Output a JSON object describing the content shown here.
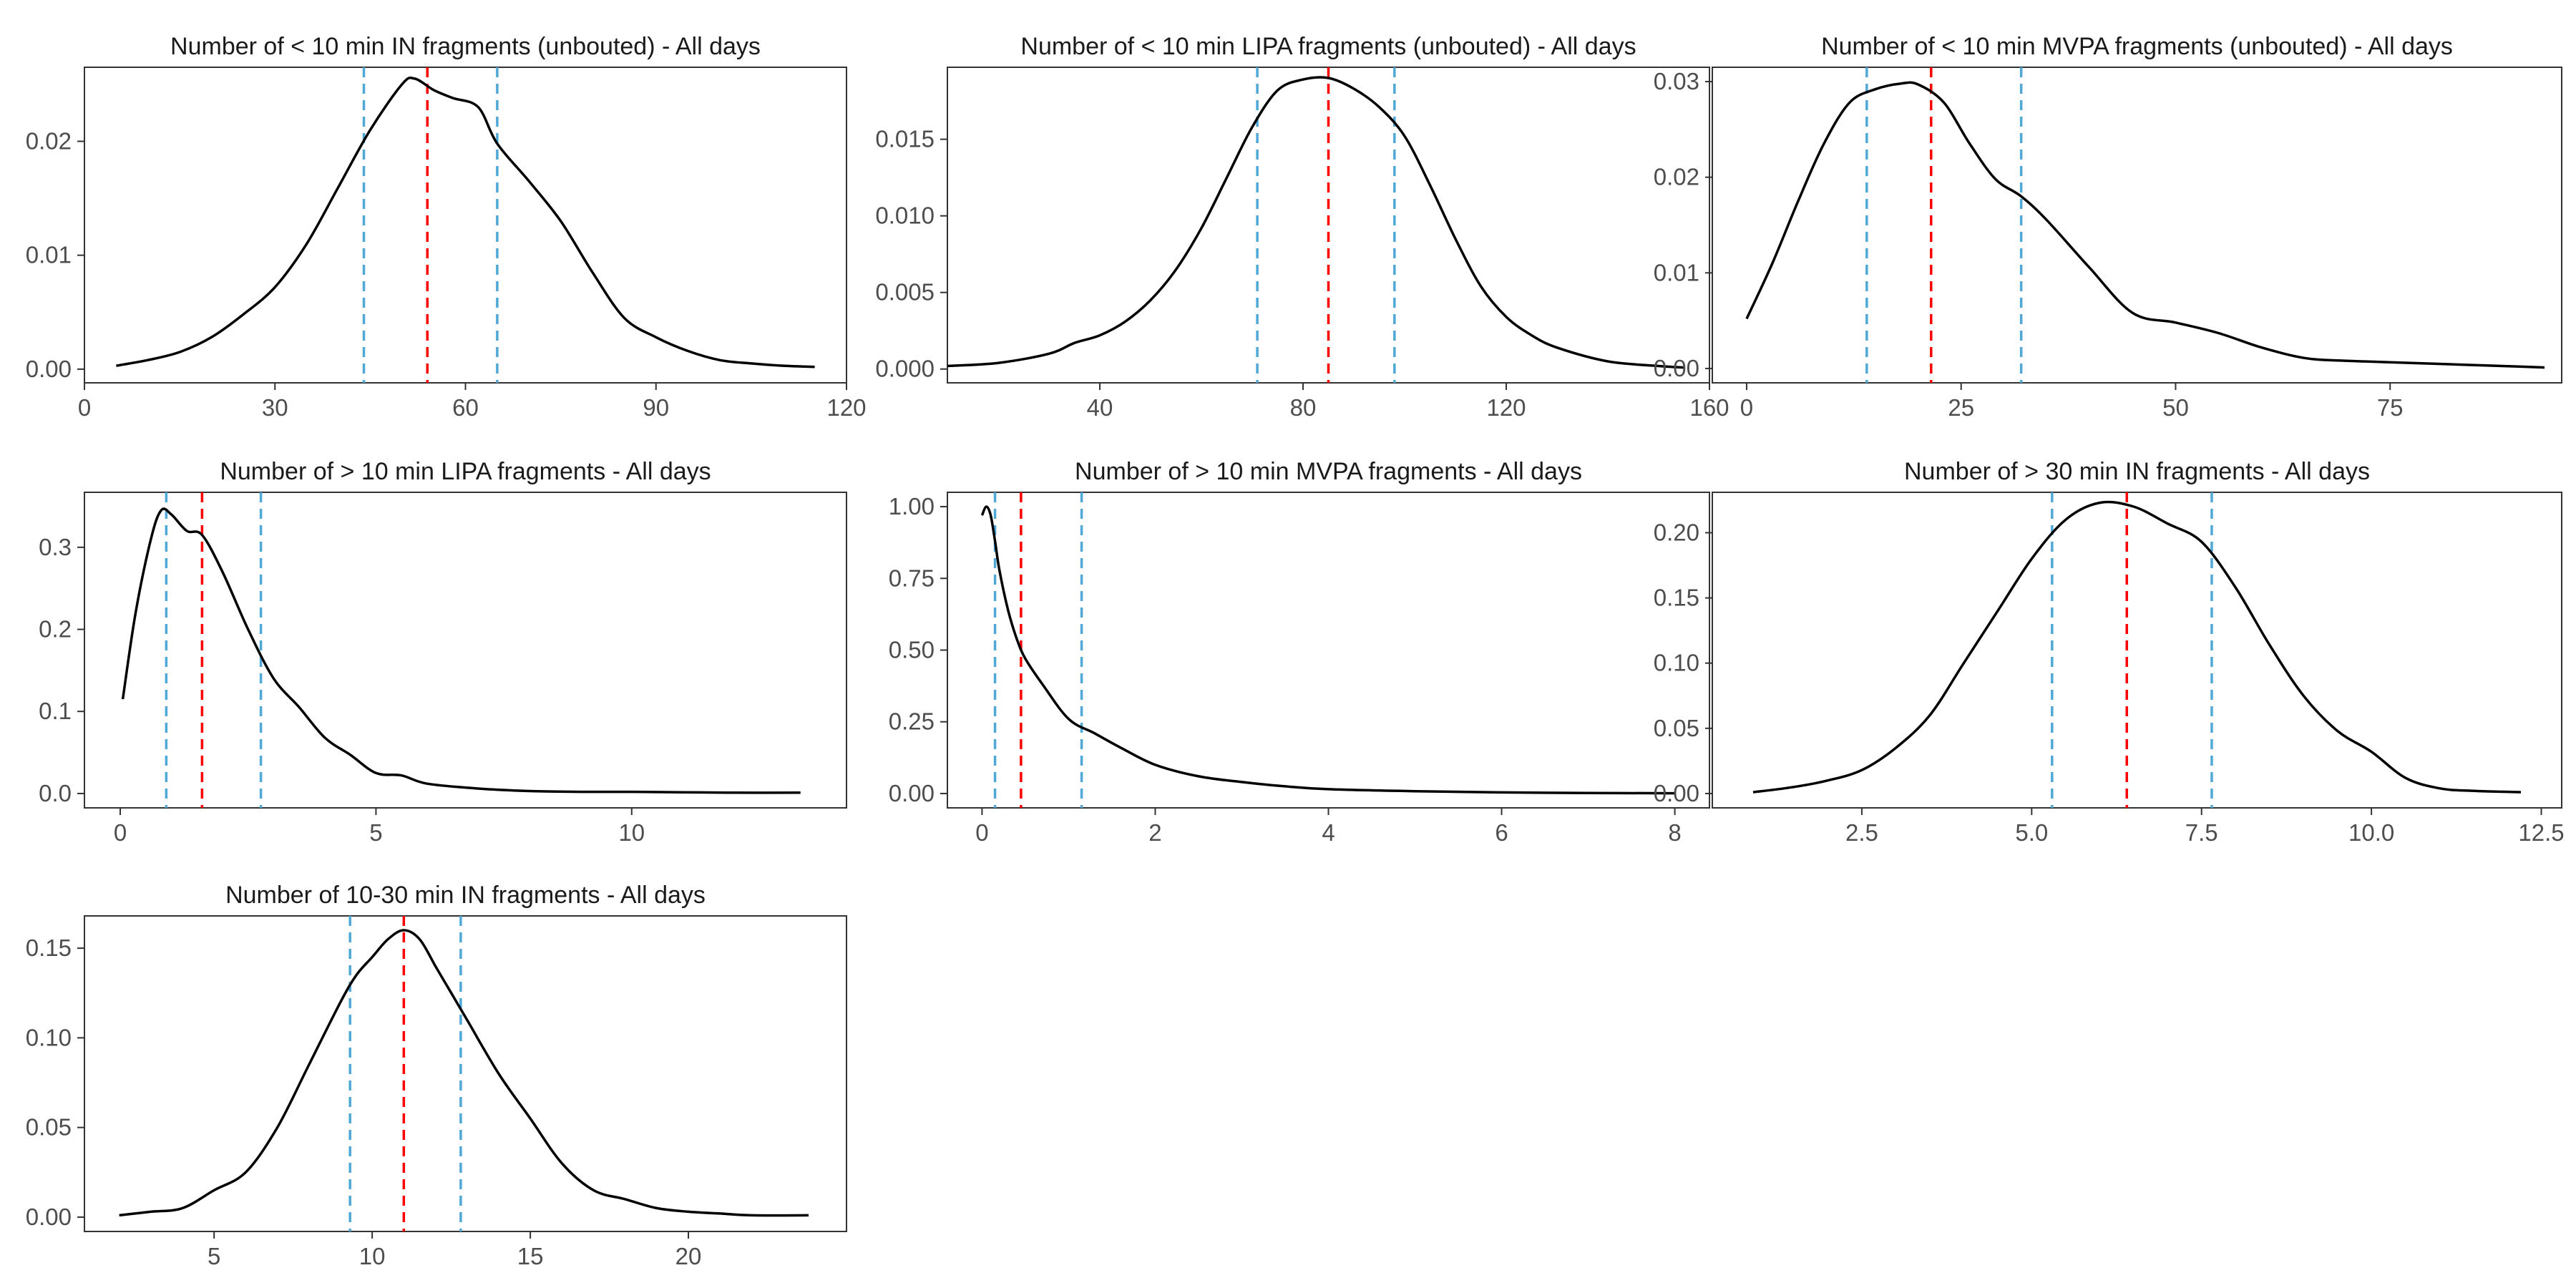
{
  "colors": {
    "background": "#ffffff",
    "density_line": "#000000",
    "median_line": "#ff0000",
    "quartile_line": "#4fa8d6",
    "panel_border": "#333333",
    "tick_text": "#4d4d4d",
    "title_text": "#1a1a1a"
  },
  "chart_data": [
    {
      "type": "line",
      "title": "Number of < 10 min IN fragments (unbouted) - All days",
      "xlabel": "",
      "ylabel": "",
      "xlim": [
        0,
        120
      ],
      "ylim": [
        -0.0012,
        0.0265
      ],
      "xticks": [
        0,
        30,
        60,
        90,
        120
      ],
      "xtick_labels": [
        "0",
        "30",
        "60",
        "90",
        "120"
      ],
      "yticks": [
        0,
        0.01,
        0.02
      ],
      "ytick_labels": [
        "0.00",
        "0.01",
        "0.02"
      ],
      "grid": false,
      "median": 54,
      "quartiles": [
        44,
        65
      ],
      "x": [
        5,
        10,
        15,
        20,
        25,
        30,
        35,
        40,
        45,
        50,
        52,
        55,
        58,
        62,
        65,
        70,
        75,
        80,
        85,
        90,
        95,
        100,
        105,
        110,
        115
      ],
      "y": [
        0.0003,
        0.0008,
        0.0015,
        0.0028,
        0.0048,
        0.0072,
        0.011,
        0.016,
        0.021,
        0.025,
        0.0255,
        0.0245,
        0.0238,
        0.023,
        0.0198,
        0.0165,
        0.013,
        0.0085,
        0.0045,
        0.0028,
        0.0016,
        0.0008,
        0.0005,
        0.0003,
        0.0002
      ]
    },
    {
      "type": "line",
      "title": "Number of < 10 min LIPA fragments (unbouted) - All days",
      "xlabel": "",
      "ylabel": "",
      "xlim": [
        10,
        160
      ],
      "ylim": [
        -0.0009,
        0.0197
      ],
      "xticks": [
        40,
        80,
        120,
        160
      ],
      "xtick_labels": [
        "40",
        "80",
        "120",
        "160"
      ],
      "yticks": [
        0,
        0.005,
        0.01,
        0.015
      ],
      "ytick_labels": [
        "0.000",
        "0.005",
        "0.010",
        "0.015"
      ],
      "grid": false,
      "median": 85,
      "quartiles": [
        71,
        98
      ],
      "x": [
        10,
        20,
        30,
        35,
        40,
        45,
        50,
        55,
        60,
        65,
        70,
        75,
        80,
        85,
        90,
        95,
        100,
        105,
        110,
        115,
        120,
        125,
        130,
        140,
        150,
        155
      ],
      "y": [
        0.0002,
        0.0004,
        0.001,
        0.0017,
        0.0022,
        0.0031,
        0.0045,
        0.0065,
        0.0092,
        0.0125,
        0.0158,
        0.0182,
        0.0189,
        0.019,
        0.0183,
        0.0171,
        0.0152,
        0.012,
        0.0085,
        0.0054,
        0.0034,
        0.0022,
        0.0014,
        0.0005,
        0.0002,
        0.0001
      ]
    },
    {
      "type": "line",
      "title": "Number of < 10 min MVPA fragments (unbouted) - All days",
      "xlabel": "",
      "ylabel": "",
      "xlim": [
        -4,
        95
      ],
      "ylim": [
        -0.0015,
        0.0315
      ],
      "xticks": [
        0,
        25,
        50,
        75
      ],
      "xtick_labels": [
        "0",
        "25",
        "50",
        "75"
      ],
      "yticks": [
        0,
        0.01,
        0.02,
        0.03
      ],
      "ytick_labels": [
        "0.00",
        "0.01",
        "0.02",
        "0.03"
      ],
      "grid": false,
      "median": 21.5,
      "quartiles": [
        14,
        32
      ],
      "x": [
        0,
        3,
        6,
        9,
        12,
        15,
        18,
        20,
        23,
        26,
        29,
        32,
        35,
        40,
        45,
        50,
        55,
        60,
        65,
        70,
        80,
        90,
        93
      ],
      "y": [
        0.0052,
        0.011,
        0.0175,
        0.0235,
        0.0278,
        0.0292,
        0.0298,
        0.0297,
        0.0278,
        0.0235,
        0.0198,
        0.018,
        0.0155,
        0.0105,
        0.0058,
        0.0048,
        0.0037,
        0.0022,
        0.0011,
        0.0008,
        0.0005,
        0.0002,
        0.0001
      ]
    },
    {
      "type": "line",
      "title": "Number of > 10 min LIPA fragments - All days",
      "xlabel": "",
      "ylabel": "",
      "xlim": [
        -0.7,
        14.2
      ],
      "ylim": [
        -0.0175,
        0.367
      ],
      "xticks": [
        0,
        5,
        10
      ],
      "xtick_labels": [
        "0",
        "5",
        "10"
      ],
      "yticks": [
        0,
        0.1,
        0.2,
        0.3
      ],
      "ytick_labels": [
        "0.0",
        "0.1",
        "0.2",
        "0.3"
      ],
      "grid": false,
      "median": 1.6,
      "quartiles": [
        0.9,
        2.75
      ],
      "x": [
        0.05,
        0.3,
        0.6,
        0.8,
        1.0,
        1.3,
        1.6,
        2.0,
        2.5,
        3.0,
        3.5,
        4.0,
        4.5,
        5.0,
        5.5,
        6.0,
        7.0,
        8.0,
        9.0,
        10.0,
        11.0,
        12.0,
        13.3
      ],
      "y": [
        0.115,
        0.22,
        0.31,
        0.345,
        0.34,
        0.32,
        0.315,
        0.27,
        0.2,
        0.14,
        0.105,
        0.068,
        0.047,
        0.025,
        0.022,
        0.012,
        0.006,
        0.003,
        0.002,
        0.002,
        0.0015,
        0.001,
        0.001
      ]
    },
    {
      "type": "line",
      "title": "Number of > 10 min MVPA fragments - All days",
      "xlabel": "",
      "ylabel": "",
      "xlim": [
        -0.4,
        8.4
      ],
      "ylim": [
        -0.05,
        1.05
      ],
      "xticks": [
        0,
        2,
        4,
        6,
        8
      ],
      "xtick_labels": [
        "0",
        "2",
        "4",
        "6",
        "8"
      ],
      "yticks": [
        0,
        0.25,
        0.5,
        0.75,
        1.0
      ],
      "ytick_labels": [
        "0.00",
        "0.25",
        "0.50",
        "0.75",
        "1.00"
      ],
      "grid": false,
      "median": 0.45,
      "quartiles": [
        0.15,
        1.15
      ],
      "x": [
        0.0,
        0.05,
        0.1,
        0.15,
        0.2,
        0.3,
        0.4,
        0.5,
        0.7,
        1.0,
        1.3,
        1.6,
        2.0,
        2.5,
        3.0,
        3.5,
        4.0,
        5.0,
        6.0,
        7.0,
        8.0
      ],
      "y": [
        0.97,
        1.0,
        0.97,
        0.88,
        0.78,
        0.64,
        0.54,
        0.47,
        0.38,
        0.26,
        0.21,
        0.16,
        0.1,
        0.06,
        0.04,
        0.025,
        0.015,
        0.008,
        0.004,
        0.002,
        0.001
      ]
    },
    {
      "type": "line",
      "title": "Number of > 30 min IN fragments - All days",
      "xlabel": "",
      "ylabel": "",
      "xlim": [
        0.3,
        12.8
      ],
      "ylim": [
        -0.011,
        0.231
      ],
      "xticks": [
        2.5,
        5.0,
        7.5,
        10.0,
        12.5
      ],
      "xtick_labels": [
        "2.5",
        "5.0",
        "7.5",
        "10.0",
        "12.5"
      ],
      "grid": false,
      "yticks": [
        0,
        0.05,
        0.1,
        0.15,
        0.2
      ],
      "ytick_labels": [
        "0.00",
        "0.05",
        "0.10",
        "0.15",
        "0.20"
      ],
      "median": 6.4,
      "quartiles": [
        5.3,
        7.65
      ],
      "x": [
        0.9,
        1.5,
        2.0,
        2.5,
        3.0,
        3.5,
        4.0,
        4.5,
        5.0,
        5.5,
        6.0,
        6.5,
        7.0,
        7.5,
        8.0,
        8.5,
        9.0,
        9.5,
        10.0,
        10.5,
        11.0,
        11.5,
        12.2
      ],
      "y": [
        0.001,
        0.005,
        0.01,
        0.018,
        0.035,
        0.06,
        0.1,
        0.14,
        0.18,
        0.21,
        0.223,
        0.22,
        0.207,
        0.193,
        0.158,
        0.114,
        0.075,
        0.048,
        0.032,
        0.012,
        0.004,
        0.002,
        0.001
      ]
    },
    {
      "type": "line",
      "title": "Number of 10-30 min IN fragments - All days",
      "xlabel": "",
      "ylabel": "",
      "xlim": [
        0.9,
        25.0
      ],
      "ylim": [
        -0.008,
        0.168
      ],
      "xticks": [
        5,
        10,
        15,
        20
      ],
      "xtick_labels": [
        "5",
        "10",
        "15",
        "20"
      ],
      "yticks": [
        0,
        0.05,
        0.1,
        0.15
      ],
      "ytick_labels": [
        "0.00",
        "0.05",
        "0.10",
        "0.15"
      ],
      "grid": false,
      "median": 11.0,
      "quartiles": [
        9.3,
        12.8
      ],
      "x": [
        2.0,
        3.0,
        4.0,
        5.0,
        6.0,
        7.0,
        8.0,
        9.0,
        9.5,
        10.0,
        10.5,
        11.0,
        11.5,
        12.0,
        12.5,
        13.0,
        14.0,
        15.0,
        16.0,
        17.0,
        18.0,
        19.0,
        20.0,
        21.0,
        22.0,
        23.8
      ],
      "y": [
        0.001,
        0.003,
        0.005,
        0.015,
        0.025,
        0.05,
        0.085,
        0.12,
        0.135,
        0.145,
        0.155,
        0.16,
        0.155,
        0.14,
        0.125,
        0.11,
        0.08,
        0.055,
        0.03,
        0.015,
        0.01,
        0.005,
        0.003,
        0.002,
        0.001,
        0.001
      ]
    }
  ]
}
